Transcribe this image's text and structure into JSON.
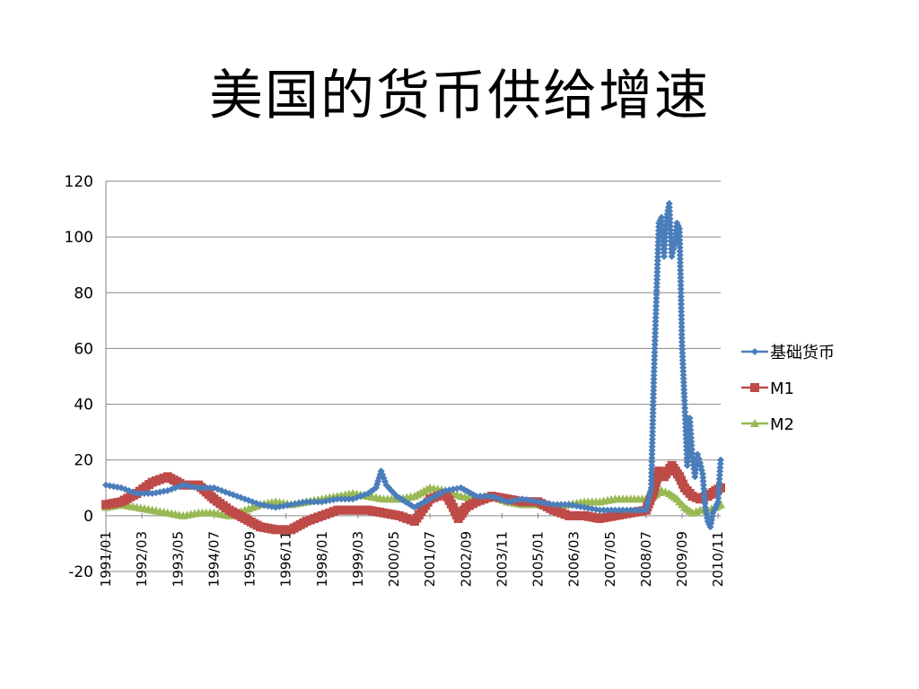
{
  "title": "美国的货币供给增速",
  "colors": {
    "base": "#4a7ebb",
    "m1": "#be4b48",
    "m2": "#98b954",
    "grid": "#868686"
  },
  "chart_data": {
    "type": "line",
    "title": "美国的货币供给增速",
    "ylim": [
      -20,
      120
    ],
    "yticks": [
      120,
      100,
      80,
      60,
      40,
      20,
      0,
      -20
    ],
    "x_range": [
      "1991/01",
      "2010/12"
    ],
    "xtick_labels": [
      "1991/01",
      "1992/03",
      "1993/05",
      "1994/07",
      "1995/09",
      "1996/11",
      "1998/01",
      "1999/03",
      "2000/05",
      "2001/07",
      "2002/09",
      "2003/11",
      "2005/01",
      "2006/03",
      "2007/05",
      "2008/07",
      "2009/09",
      "2010/11"
    ],
    "grid": true,
    "legend_position": "right",
    "series": [
      {
        "name": "基础货币",
        "marker": "diamond",
        "points": [
          [
            "1991/01",
            11
          ],
          [
            "1991/07",
            10
          ],
          [
            "1992/01",
            8
          ],
          [
            "1992/07",
            8
          ],
          [
            "1993/01",
            9
          ],
          [
            "1993/07",
            11
          ],
          [
            "1994/01",
            10
          ],
          [
            "1994/07",
            10
          ],
          [
            "1995/01",
            8
          ],
          [
            "1995/07",
            6
          ],
          [
            "1996/01",
            4
          ],
          [
            "1996/07",
            3
          ],
          [
            "1997/01",
            4
          ],
          [
            "1997/07",
            5
          ],
          [
            "1998/01",
            5
          ],
          [
            "1998/07",
            6
          ],
          [
            "1999/01",
            6
          ],
          [
            "1999/07",
            8
          ],
          [
            "1999/10",
            10
          ],
          [
            "1999/12",
            16
          ],
          [
            "2000/02",
            11
          ],
          [
            "2000/06",
            7
          ],
          [
            "2001/01",
            3
          ],
          [
            "2001/07",
            6
          ],
          [
            "2002/01",
            9
          ],
          [
            "2002/07",
            10
          ],
          [
            "2003/01",
            7
          ],
          [
            "2003/07",
            7
          ],
          [
            "2004/01",
            5
          ],
          [
            "2004/07",
            6
          ],
          [
            "2005/01",
            5
          ],
          [
            "2005/07",
            4
          ],
          [
            "2006/01",
            4
          ],
          [
            "2006/07",
            3
          ],
          [
            "2007/01",
            2
          ],
          [
            "2007/07",
            2
          ],
          [
            "2008/01",
            2
          ],
          [
            "2008/07",
            2
          ],
          [
            "2008/09",
            10
          ],
          [
            "2008/10",
            49
          ],
          [
            "2008/11",
            78
          ],
          [
            "2008/12",
            105
          ],
          [
            "2009/01",
            107
          ],
          [
            "2009/02",
            93
          ],
          [
            "2009/03",
            107
          ],
          [
            "2009/04",
            112
          ],
          [
            "2009/05",
            93
          ],
          [
            "2009/06",
            97
          ],
          [
            "2009/07",
            105
          ],
          [
            "2009/08",
            103
          ],
          [
            "2009/09",
            61
          ],
          [
            "2009/10",
            40
          ],
          [
            "2009/11",
            18
          ],
          [
            "2009/12",
            35
          ],
          [
            "2010/01",
            21
          ],
          [
            "2010/02",
            14
          ],
          [
            "2010/03",
            22
          ],
          [
            "2010/04",
            19
          ],
          [
            "2010/05",
            15
          ],
          [
            "2010/06",
            3
          ],
          [
            "2010/07",
            -2
          ],
          [
            "2010/08",
            -4
          ],
          [
            "2010/09",
            1
          ],
          [
            "2010/10",
            3
          ],
          [
            "2010/11",
            5
          ],
          [
            "2010/12",
            20
          ]
        ]
      },
      {
        "name": "M1",
        "marker": "square",
        "points": [
          [
            "1991/01",
            4
          ],
          [
            "1991/07",
            5
          ],
          [
            "1992/01",
            8
          ],
          [
            "1992/07",
            12
          ],
          [
            "1993/01",
            14
          ],
          [
            "1993/07",
            11
          ],
          [
            "1994/01",
            11
          ],
          [
            "1994/07",
            6
          ],
          [
            "1995/01",
            2
          ],
          [
            "1995/07",
            -1
          ],
          [
            "1996/01",
            -4
          ],
          [
            "1996/07",
            -5
          ],
          [
            "1997/01",
            -5
          ],
          [
            "1997/07",
            -2
          ],
          [
            "1998/01",
            0
          ],
          [
            "1998/07",
            2
          ],
          [
            "1999/01",
            2
          ],
          [
            "1999/07",
            2
          ],
          [
            "2000/01",
            1
          ],
          [
            "2000/07",
            0
          ],
          [
            "2001/01",
            -2
          ],
          [
            "2001/07",
            6
          ],
          [
            "2002/01",
            8
          ],
          [
            "2002/04",
            3
          ],
          [
            "2002/06",
            -1
          ],
          [
            "2002/09",
            3
          ],
          [
            "2003/01",
            5
          ],
          [
            "2003/07",
            7
          ],
          [
            "2004/01",
            6
          ],
          [
            "2004/07",
            5
          ],
          [
            "2005/01",
            5
          ],
          [
            "2005/07",
            2
          ],
          [
            "2006/01",
            0
          ],
          [
            "2006/07",
            0
          ],
          [
            "2007/01",
            -1
          ],
          [
            "2007/07",
            0
          ],
          [
            "2008/01",
            1
          ],
          [
            "2008/07",
            2
          ],
          [
            "2008/10",
            9
          ],
          [
            "2008/12",
            16
          ],
          [
            "2009/02",
            14
          ],
          [
            "2009/05",
            18
          ],
          [
            "2009/08",
            14
          ],
          [
            "2009/10",
            10
          ],
          [
            "2010/01",
            7
          ],
          [
            "2010/04",
            6
          ],
          [
            "2010/07",
            7
          ],
          [
            "2010/10",
            9
          ],
          [
            "2010/12",
            10
          ]
        ]
      },
      {
        "name": "M2",
        "marker": "triangle",
        "points": [
          [
            "1991/01",
            3
          ],
          [
            "1991/07",
            4
          ],
          [
            "1992/01",
            3
          ],
          [
            "1992/07",
            2
          ],
          [
            "1993/01",
            1
          ],
          [
            "1993/07",
            0
          ],
          [
            "1994/01",
            1
          ],
          [
            "1994/07",
            1
          ],
          [
            "1995/01",
            0
          ],
          [
            "1995/07",
            2
          ],
          [
            "1996/01",
            4
          ],
          [
            "1996/07",
            5
          ],
          [
            "1997/01",
            4
          ],
          [
            "1997/07",
            5
          ],
          [
            "1998/01",
            6
          ],
          [
            "1998/07",
            7
          ],
          [
            "1999/01",
            8
          ],
          [
            "1999/07",
            7
          ],
          [
            "2000/01",
            6
          ],
          [
            "2000/07",
            6
          ],
          [
            "2001/01",
            7
          ],
          [
            "2001/07",
            10
          ],
          [
            "2002/01",
            9
          ],
          [
            "2002/07",
            7
          ],
          [
            "2003/01",
            6
          ],
          [
            "2003/07",
            7
          ],
          [
            "2004/01",
            5
          ],
          [
            "2004/07",
            4
          ],
          [
            "2005/01",
            4
          ],
          [
            "2005/07",
            3
          ],
          [
            "2006/01",
            4
          ],
          [
            "2006/07",
            5
          ],
          [
            "2007/01",
            5
          ],
          [
            "2007/07",
            6
          ],
          [
            "2008/01",
            6
          ],
          [
            "2008/07",
            6
          ],
          [
            "2008/10",
            7
          ],
          [
            "2009/01",
            9
          ],
          [
            "2009/04",
            8
          ],
          [
            "2009/07",
            6
          ],
          [
            "2009/10",
            3
          ],
          [
            "2010/01",
            1
          ],
          [
            "2010/04",
            2
          ],
          [
            "2010/07",
            2
          ],
          [
            "2010/10",
            3
          ],
          [
            "2010/12",
            4
          ]
        ]
      }
    ]
  }
}
